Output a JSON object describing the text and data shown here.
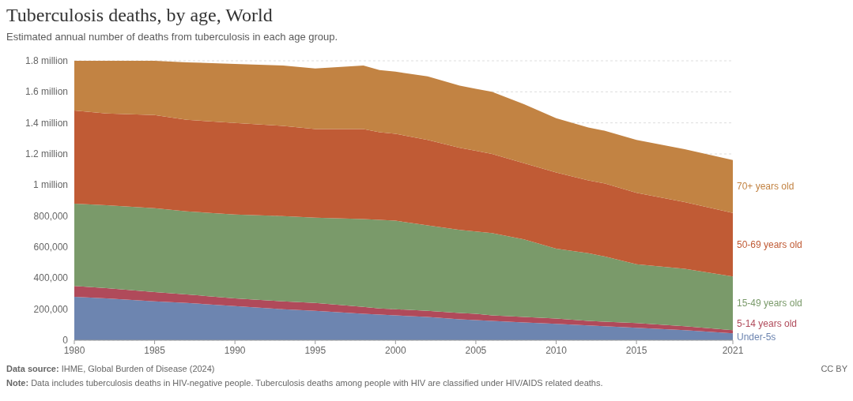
{
  "chart_data": {
    "type": "area",
    "stacked": true,
    "title": "Tuberculosis deaths, by age, World",
    "subtitle": "Estimated annual number of deaths from tuberculosis in each age group.",
    "x": [
      1980,
      1982,
      1985,
      1987,
      1990,
      1993,
      1995,
      1998,
      1999,
      2000,
      2002,
      2004,
      2005,
      2006,
      2008,
      2010,
      2012,
      2013,
      2015,
      2018,
      2021
    ],
    "series": [
      {
        "name": "Under-5s",
        "color": "#6d85b0",
        "values": [
          280000,
          270000,
          250000,
          240000,
          220000,
          200000,
          190000,
          170000,
          165000,
          160000,
          150000,
          135000,
          130000,
          125000,
          115000,
          105000,
          95000,
          90000,
          80000,
          65000,
          45000
        ]
      },
      {
        "name": "5-14 years old",
        "color": "#b04a5a",
        "values": [
          70000,
          65000,
          60000,
          55000,
          50000,
          50000,
          50000,
          45000,
          40000,
          40000,
          40000,
          40000,
          40000,
          35000,
          35000,
          35000,
          30000,
          30000,
          30000,
          25000,
          20000
        ]
      },
      {
        "name": "15-49 years old",
        "color": "#7a9a6a",
        "values": [
          530000,
          535000,
          540000,
          535000,
          540000,
          550000,
          550000,
          565000,
          570000,
          570000,
          550000,
          535000,
          530000,
          530000,
          500000,
          450000,
          435000,
          420000,
          380000,
          370000,
          345000
        ]
      },
      {
        "name": "50-69 years old",
        "color": "#c05b35",
        "values": [
          600000,
          590000,
          600000,
          590000,
          590000,
          580000,
          570000,
          580000,
          565000,
          560000,
          550000,
          530000,
          520000,
          510000,
          490000,
          490000,
          470000,
          470000,
          460000,
          430000,
          410000
        ]
      },
      {
        "name": "70+ years old",
        "color": "#c28343",
        "values": [
          320000,
          340000,
          350000,
          370000,
          380000,
          390000,
          390000,
          410000,
          400000,
          400000,
          410000,
          400000,
          400000,
          400000,
          380000,
          350000,
          340000,
          340000,
          340000,
          340000,
          340000
        ]
      }
    ],
    "xlim": [
      1980,
      2021
    ],
    "xticks": [
      1980,
      1985,
      1990,
      1995,
      2000,
      2005,
      2010,
      2015,
      2021
    ],
    "ylim": [
      0,
      1800000
    ],
    "yticks": [
      0,
      {
        "value": 200000,
        "label": "200,000"
      },
      {
        "value": 400000,
        "label": "400,000"
      },
      {
        "value": 600000,
        "label": "600,000"
      },
      {
        "value": 800000,
        "label": "800,000"
      },
      {
        "value": 1000000,
        "label": "1 million"
      },
      {
        "value": 1200000,
        "label": "1.2 million"
      },
      {
        "value": 1400000,
        "label": "1.4 million"
      },
      {
        "value": 1600000,
        "label": "1.6 million"
      },
      {
        "value": 1800000,
        "label": "1.8 million"
      }
    ],
    "grid": "y",
    "legend": "right",
    "annotations": [
      "Data source: IHME, Global Burden of Disease (2024)",
      "CC BY",
      "Note: Data includes tuberculosis deaths in HIV-negative people. Tuberculosis deaths among people with HIV are classified under HIV/AIDS related deaths."
    ]
  }
}
